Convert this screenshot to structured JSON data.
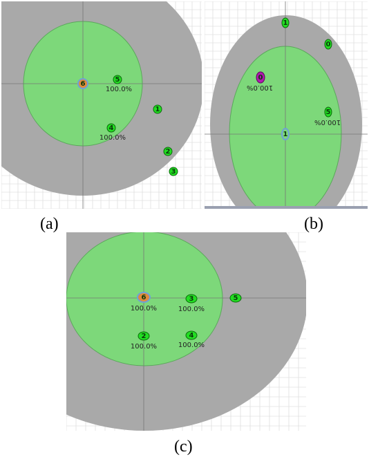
{
  "figure": {
    "panels": [
      {
        "caption": "(a)",
        "nodes": [
          {
            "label": "6",
            "kind": "center",
            "percent": ""
          },
          {
            "label": "5",
            "kind": "node",
            "percent": "100.0%"
          },
          {
            "label": "1",
            "kind": "node",
            "percent": ""
          },
          {
            "label": "4",
            "kind": "node",
            "percent": "100.0%"
          },
          {
            "label": "2",
            "kind": "node",
            "percent": ""
          },
          {
            "label": "3",
            "kind": "node",
            "percent": ""
          }
        ]
      },
      {
        "caption": "(b)",
        "nodes": [
          {
            "label": "1",
            "kind": "node-top",
            "percent": ""
          },
          {
            "label": "0",
            "kind": "node",
            "percent": ""
          },
          {
            "label": "0",
            "kind": "magenta",
            "percent": "100.0%"
          },
          {
            "label": "5",
            "kind": "node",
            "percent": "100.0%"
          },
          {
            "label": "1",
            "kind": "center",
            "percent": ""
          }
        ]
      },
      {
        "caption": "(c)",
        "nodes": [
          {
            "label": "6",
            "kind": "center",
            "percent": "100.0%"
          },
          {
            "label": "3",
            "kind": "node",
            "percent": "100.0%"
          },
          {
            "label": "5",
            "kind": "node",
            "percent": ""
          },
          {
            "label": "2",
            "kind": "node",
            "percent": "100.0%"
          },
          {
            "label": "4",
            "kind": "node",
            "percent": "100.0%"
          }
        ]
      }
    ],
    "colors": {
      "outer_region": "#a9a9a9",
      "inner_region": "#7dd87a",
      "node_fill": "#22dd22",
      "center_fill": "#e08a3c",
      "center_ring": "#6fa0d8",
      "magenta_fill": "#b01ab0",
      "grid_line": "#d0d0d0",
      "axis_line": "#777777"
    }
  }
}
